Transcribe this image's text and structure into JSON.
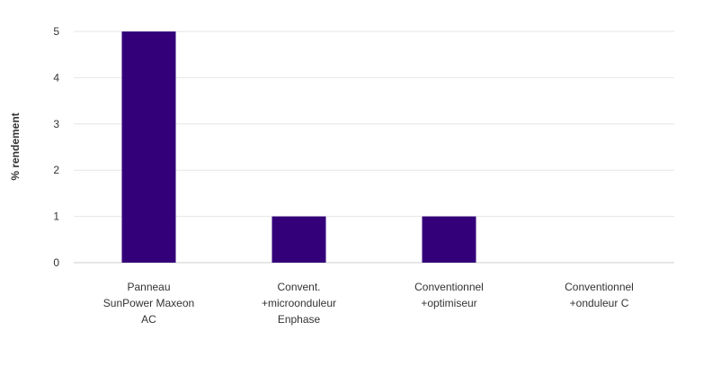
{
  "chart_data": {
    "type": "bar",
    "categories": [
      [
        "Panneau",
        "SunPower Maxeon",
        "AC"
      ],
      [
        "Convent.",
        "+microonduleur",
        "Enphase"
      ],
      [
        "Conventionnel",
        "+optimiseur"
      ],
      [
        "Conventionnel",
        "+onduleur C"
      ]
    ],
    "values": [
      5,
      1,
      1,
      0
    ],
    "ylabel": "% rendement",
    "xlabel": "",
    "title": "",
    "ylim": [
      0,
      5
    ],
    "yticks": [
      0,
      1,
      2,
      3,
      4,
      5
    ],
    "grid": true,
    "legend": "none",
    "colors": {
      "bar": "#33007a",
      "grid": "#e6e6e6",
      "text": "#333333"
    }
  }
}
